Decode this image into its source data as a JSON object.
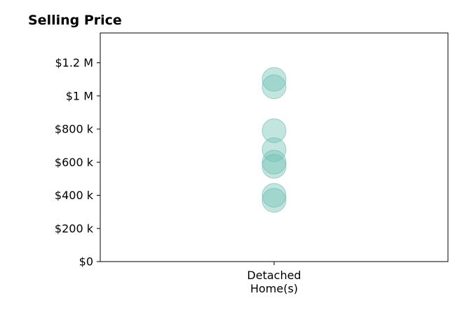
{
  "chart_data": {
    "type": "scatter",
    "title": "Selling Price",
    "xlabel": "",
    "ylabel": "",
    "categories": [
      "Detached\nHome(s)"
    ],
    "y_ticks": [
      0,
      200000,
      400000,
      600000,
      800000,
      1000000,
      1200000
    ],
    "y_tick_labels": [
      "$0",
      "$200 k",
      "$400 k",
      "$600 k",
      "$800 k",
      "$1 M",
      "$1.2 M"
    ],
    "ylim": [
      0,
      1380000
    ],
    "grid": false,
    "legend": "none",
    "series": [
      {
        "category": "Detached\nHome(s)",
        "values": [
          1100000,
          1055000,
          790000,
          675000,
          600000,
          575000,
          400000,
          370000
        ]
      }
    ],
    "colors": {
      "marker_fill": "#6fc0b4",
      "marker_stroke": "#5fb5a8",
      "axis": "#000000",
      "text": "#000000"
    }
  }
}
